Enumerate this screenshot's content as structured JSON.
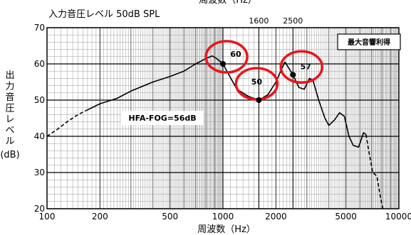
{
  "chart_data": {
    "type": "line",
    "title": "周波数（Hz）",
    "subtitle": "入力音圧レベル  50dB SPL",
    "xlabel": "周波数（Hz）",
    "ylabel_lines": [
      "出",
      "力",
      "音",
      "圧",
      "レ",
      "ベ",
      "ル"
    ],
    "ylabel_unit": "(dB)",
    "x_scale": "log",
    "xlim": [
      100,
      10000
    ],
    "ylim": [
      20,
      70
    ],
    "grid": true,
    "x_ticks": [
      {
        "value": 100,
        "label": "100"
      },
      {
        "value": 200,
        "label": "200"
      },
      {
        "value": 500,
        "label": "500"
      },
      {
        "value": 1000,
        "label": "1000"
      },
      {
        "value": 2000,
        "label": "2000"
      },
      {
        "value": 5000,
        "label": "5000"
      },
      {
        "value": 10000,
        "label": "10000"
      }
    ],
    "y_ticks": [
      {
        "value": 20,
        "label": "20"
      },
      {
        "value": 30,
        "label": "30"
      },
      {
        "value": 40,
        "label": "40"
      },
      {
        "value": 50,
        "label": "50"
      },
      {
        "value": 60,
        "label": "60"
      },
      {
        "value": 70,
        "label": "70"
      }
    ],
    "top_ticks": [
      {
        "value": 1600,
        "label": "1600"
      },
      {
        "value": 2500,
        "label": "2500"
      }
    ],
    "legend": {
      "label": "最大音響利得",
      "placement": "top-right"
    },
    "annotation_text": "HFA-FOG=56dB",
    "series": [
      {
        "style": "dashed",
        "points": [
          [
            100,
            40
          ],
          [
            115,
            42
          ],
          [
            130,
            44
          ],
          [
            150,
            46
          ],
          [
            165,
            47
          ]
        ]
      },
      {
        "style": "solid",
        "points": [
          [
            165,
            47
          ],
          [
            200,
            49
          ],
          [
            250,
            50.5
          ],
          [
            300,
            52.5
          ],
          [
            400,
            55
          ],
          [
            500,
            56.5
          ],
          [
            600,
            58
          ],
          [
            700,
            60
          ],
          [
            800,
            61.5
          ],
          [
            870,
            62.2
          ],
          [
            920,
            61.5
          ],
          [
            1000,
            60
          ],
          [
            1080,
            57
          ],
          [
            1200,
            53
          ],
          [
            1400,
            51
          ],
          [
            1600,
            50
          ],
          [
            1800,
            51.5
          ],
          [
            2000,
            55
          ],
          [
            2150,
            58.5
          ],
          [
            2250,
            60.5
          ],
          [
            2500,
            57
          ],
          [
            2700,
            53.5
          ],
          [
            2900,
            53
          ],
          [
            3100,
            56
          ],
          [
            3250,
            55.5
          ],
          [
            3500,
            50
          ],
          [
            3800,
            45
          ],
          [
            4000,
            43
          ],
          [
            4300,
            44.5
          ],
          [
            4600,
            46.5
          ],
          [
            4900,
            45.5
          ],
          [
            5200,
            40
          ],
          [
            5500,
            37.5
          ],
          [
            5900,
            37
          ],
          [
            6300,
            41
          ],
          [
            6500,
            40.5
          ]
        ]
      },
      {
        "style": "dashed",
        "points": [
          [
            6500,
            40.5
          ],
          [
            6800,
            35
          ],
          [
            7100,
            30
          ],
          [
            7500,
            29
          ],
          [
            7800,
            24
          ],
          [
            8100,
            20
          ]
        ]
      }
    ],
    "markers": [
      {
        "x": 1000,
        "y": 60,
        "label": "60"
      },
      {
        "x": 1600,
        "y": 50,
        "label": "50"
      },
      {
        "x": 2500,
        "y": 57,
        "label": "57"
      }
    ],
    "highlight_color": "#e8171c",
    "line_color": "#000000"
  }
}
